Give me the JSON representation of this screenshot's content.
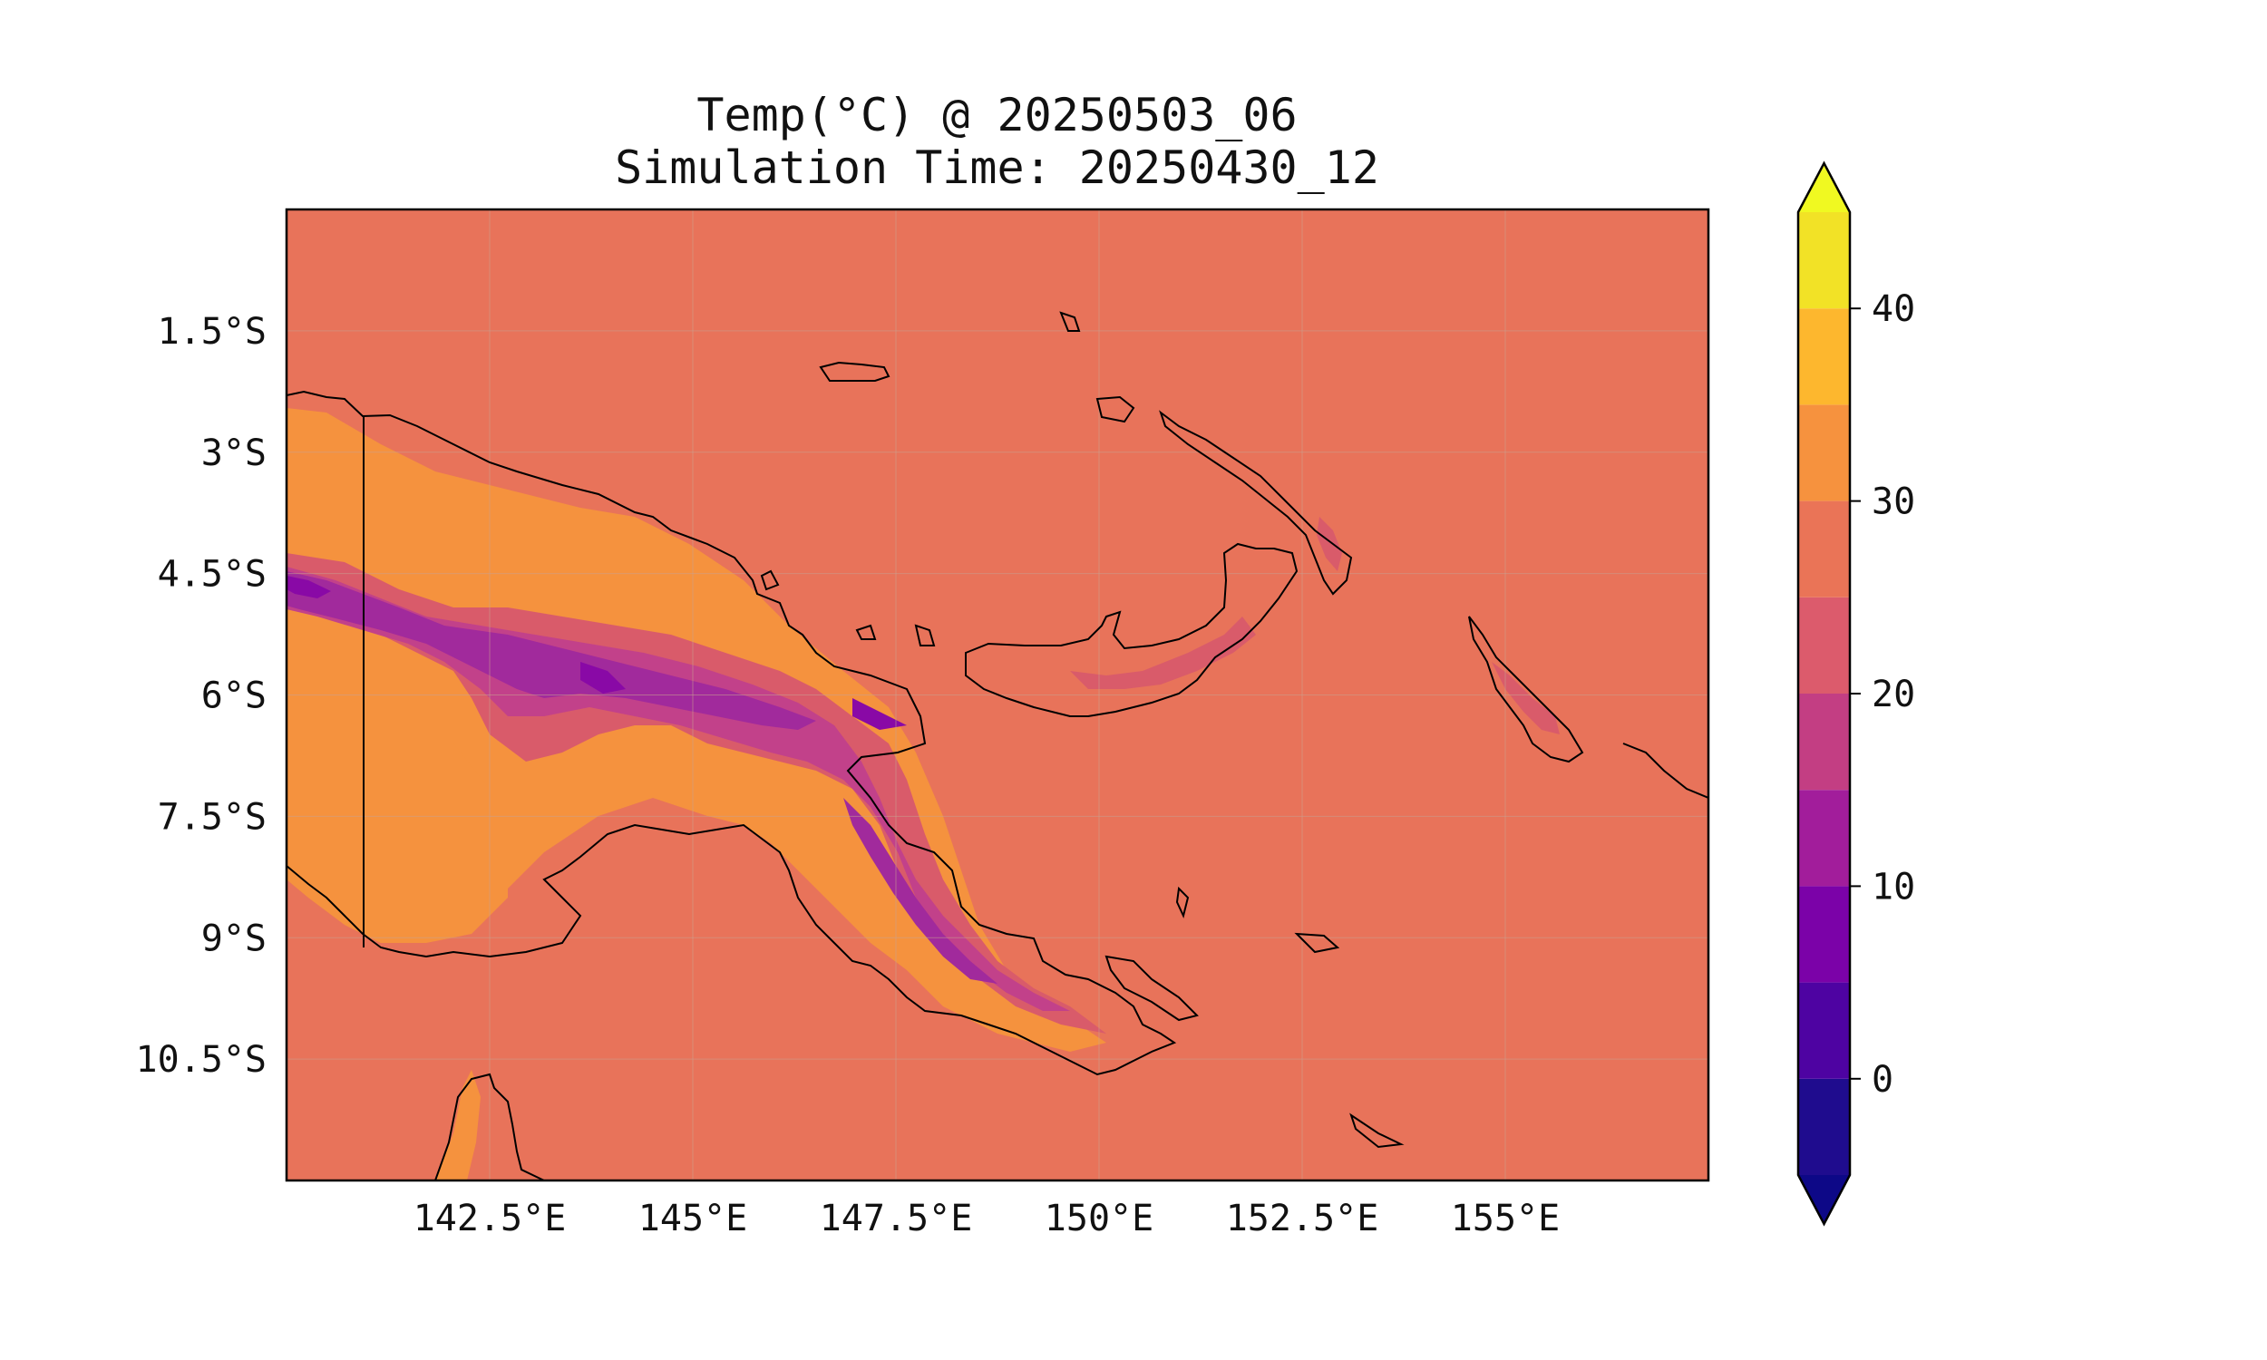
{
  "title": {
    "line1": "Temp(°C) @ 20250503_06",
    "line2": "Simulation Time: 20250430_12"
  },
  "map": {
    "type": "filled-contour map",
    "variable": "Temp(°C)",
    "lon_range": [
      140.0,
      157.5
    ],
    "lat_range": [
      -12.0,
      0.0
    ],
    "x_ticks": [
      "142.5°E",
      "145°E",
      "147.5°E",
      "150°E",
      "152.5°E",
      "155°E"
    ],
    "x_tick_values": [
      142.5,
      145,
      147.5,
      150,
      152.5,
      155
    ],
    "y_ticks": [
      "1.5°S",
      "3°S",
      "4.5°S",
      "6°S",
      "7.5°S",
      "9°S",
      "10.5°S"
    ],
    "y_tick_values": [
      -1.5,
      -3,
      -4.5,
      -6,
      -7.5,
      -9,
      -10.5
    ],
    "gridlines": true,
    "coastlines": true,
    "background_level_color": "#e8735a",
    "highland_colors": [
      "#f5923e",
      "#d95b6a",
      "#c2418a",
      "#a12a9c",
      "#8909a6"
    ]
  },
  "colorbar": {
    "levels": [
      -5,
      0,
      5,
      10,
      15,
      20,
      25,
      30,
      35,
      40,
      45
    ],
    "tick_labels": [
      "0",
      "10",
      "20",
      "30",
      "40"
    ],
    "tick_values": [
      0,
      10,
      20,
      30,
      40
    ],
    "colors": [
      "#1f0c8e",
      "#4e03a2",
      "#7b02a8",
      "#a21d9b",
      "#c33e83",
      "#dc5b6c",
      "#ea7457",
      "#f6923e",
      "#fdb72e",
      "#f2e226"
    ],
    "under_color": "#0d0887",
    "over_color": "#f0f921",
    "extend": "both"
  }
}
